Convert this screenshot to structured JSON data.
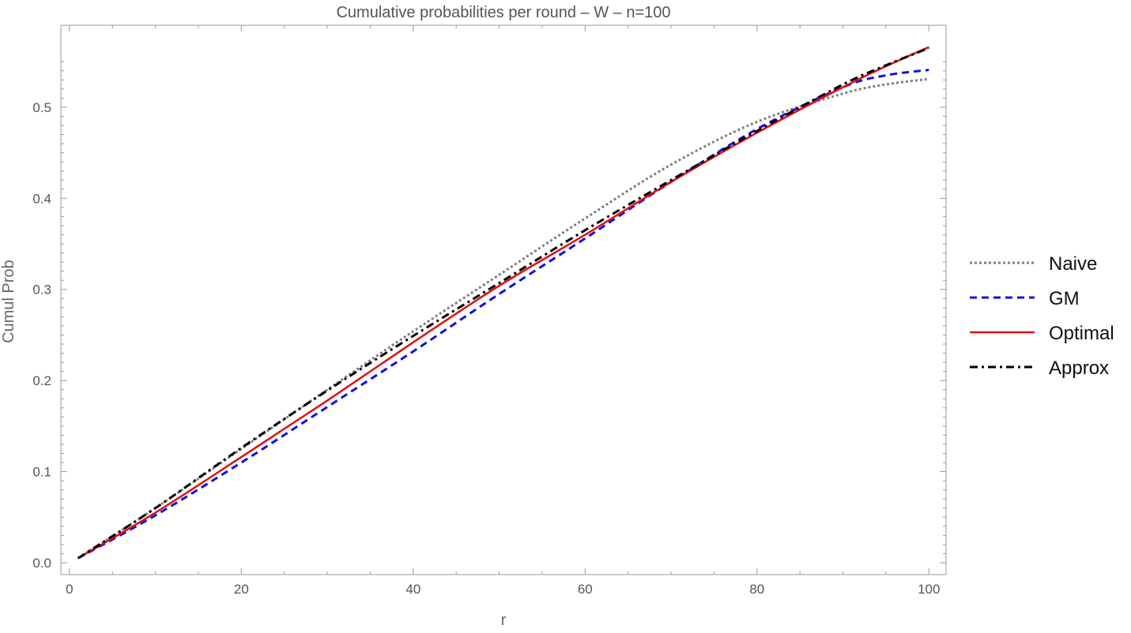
{
  "chart_data": {
    "type": "line",
    "title": "Cumulative probabilities per round – W – n=100",
    "xlabel": "r",
    "ylabel": "Cumul Prob",
    "xlim": [
      -1,
      102
    ],
    "ylim": [
      -0.013,
      0.59
    ],
    "x_ticks": [
      0,
      20,
      40,
      60,
      80,
      100
    ],
    "x_tick_labels": [
      "0",
      "20",
      "40",
      "60",
      "80",
      "100"
    ],
    "y_ticks": [
      0.0,
      0.1,
      0.2,
      0.3,
      0.4,
      0.5
    ],
    "y_tick_labels": [
      "0.0",
      "0.1",
      "0.2",
      "0.3",
      "0.4",
      "0.5"
    ],
    "grid": false,
    "legend": "right",
    "x": [
      1,
      10,
      20,
      30,
      40,
      50,
      60,
      70,
      80,
      90,
      95,
      100
    ],
    "series": [
      {
        "name": "Naive",
        "color": "#7f7f7f",
        "dash": "dotted",
        "values": [
          0.005,
          0.06,
          0.125,
          0.19,
          0.254,
          0.316,
          0.378,
          0.437,
          0.484,
          0.515,
          0.525,
          0.531
        ]
      },
      {
        "name": "GM",
        "color": "#1010e0",
        "dash": "dashed",
        "values": [
          0.005,
          0.052,
          0.11,
          0.171,
          0.232,
          0.295,
          0.356,
          0.418,
          0.476,
          0.522,
          0.535,
          0.541
        ]
      },
      {
        "name": "Optimal",
        "color": "#e01010",
        "dash": "solid",
        "values": [
          0.005,
          0.055,
          0.116,
          0.178,
          0.242,
          0.304,
          0.36,
          0.418,
          0.472,
          0.522,
          0.545,
          0.566
        ]
      },
      {
        "name": "Approx",
        "color": "#000000",
        "dash": "dashdot",
        "values": [
          0.005,
          0.06,
          0.126,
          0.189,
          0.249,
          0.307,
          0.365,
          0.42,
          0.474,
          0.525,
          0.546,
          0.565
        ]
      }
    ]
  }
}
